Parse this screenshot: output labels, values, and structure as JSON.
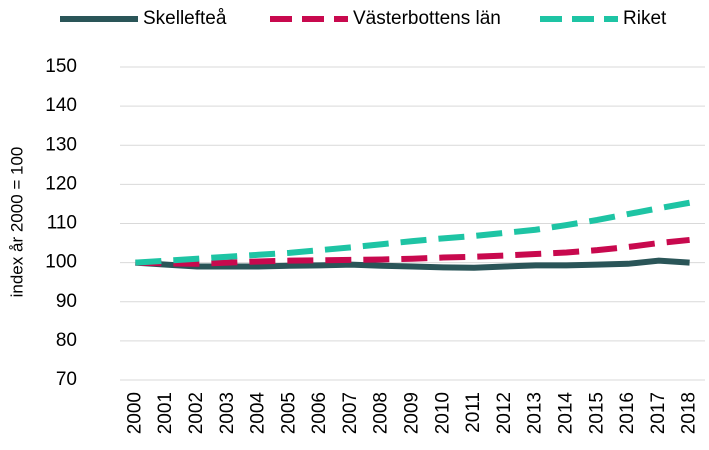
{
  "chart_data": {
    "type": "line",
    "ylabel": "index år 2000 = 100",
    "categories": [
      "2000",
      "2001",
      "2002",
      "2003",
      "2004",
      "2005",
      "2006",
      "2007",
      "2008",
      "2009",
      "2010",
      "2011",
      "2012",
      "2013",
      "2014",
      "2015",
      "2016",
      "2017",
      "2018"
    ],
    "series": [
      {
        "name": "Skellefteå",
        "color": "#2a5558",
        "line_style": "solid",
        "values": [
          100,
          99.5,
          99,
          99,
          99,
          99.2,
          99.3,
          99.5,
          99.2,
          99,
          98.8,
          98.7,
          99,
          99.3,
          99.3,
          99.5,
          99.7,
          100.5,
          100
        ]
      },
      {
        "name": "Västerbottens län",
        "color": "#c8094e",
        "line_style": "dashed",
        "values": [
          100,
          99.8,
          99.7,
          100,
          100.3,
          100.5,
          100.6,
          100.7,
          100.8,
          101,
          101.3,
          101.5,
          101.8,
          102.2,
          102.6,
          103.2,
          104,
          105,
          105.8
        ]
      },
      {
        "name": "Riket",
        "color": "#1ec4a4",
        "line_style": "dashed",
        "values": [
          100,
          100.5,
          101,
          101.5,
          102,
          102.5,
          103.2,
          103.9,
          104.7,
          105.5,
          106.2,
          106.8,
          107.6,
          108.4,
          109.6,
          110.9,
          112.4,
          113.9,
          115.3
        ]
      }
    ],
    "ylim": [
      70,
      150
    ],
    "yticks": [
      70,
      80,
      90,
      100,
      110,
      120,
      130,
      140,
      150
    ],
    "grid": true,
    "legend": "top"
  }
}
